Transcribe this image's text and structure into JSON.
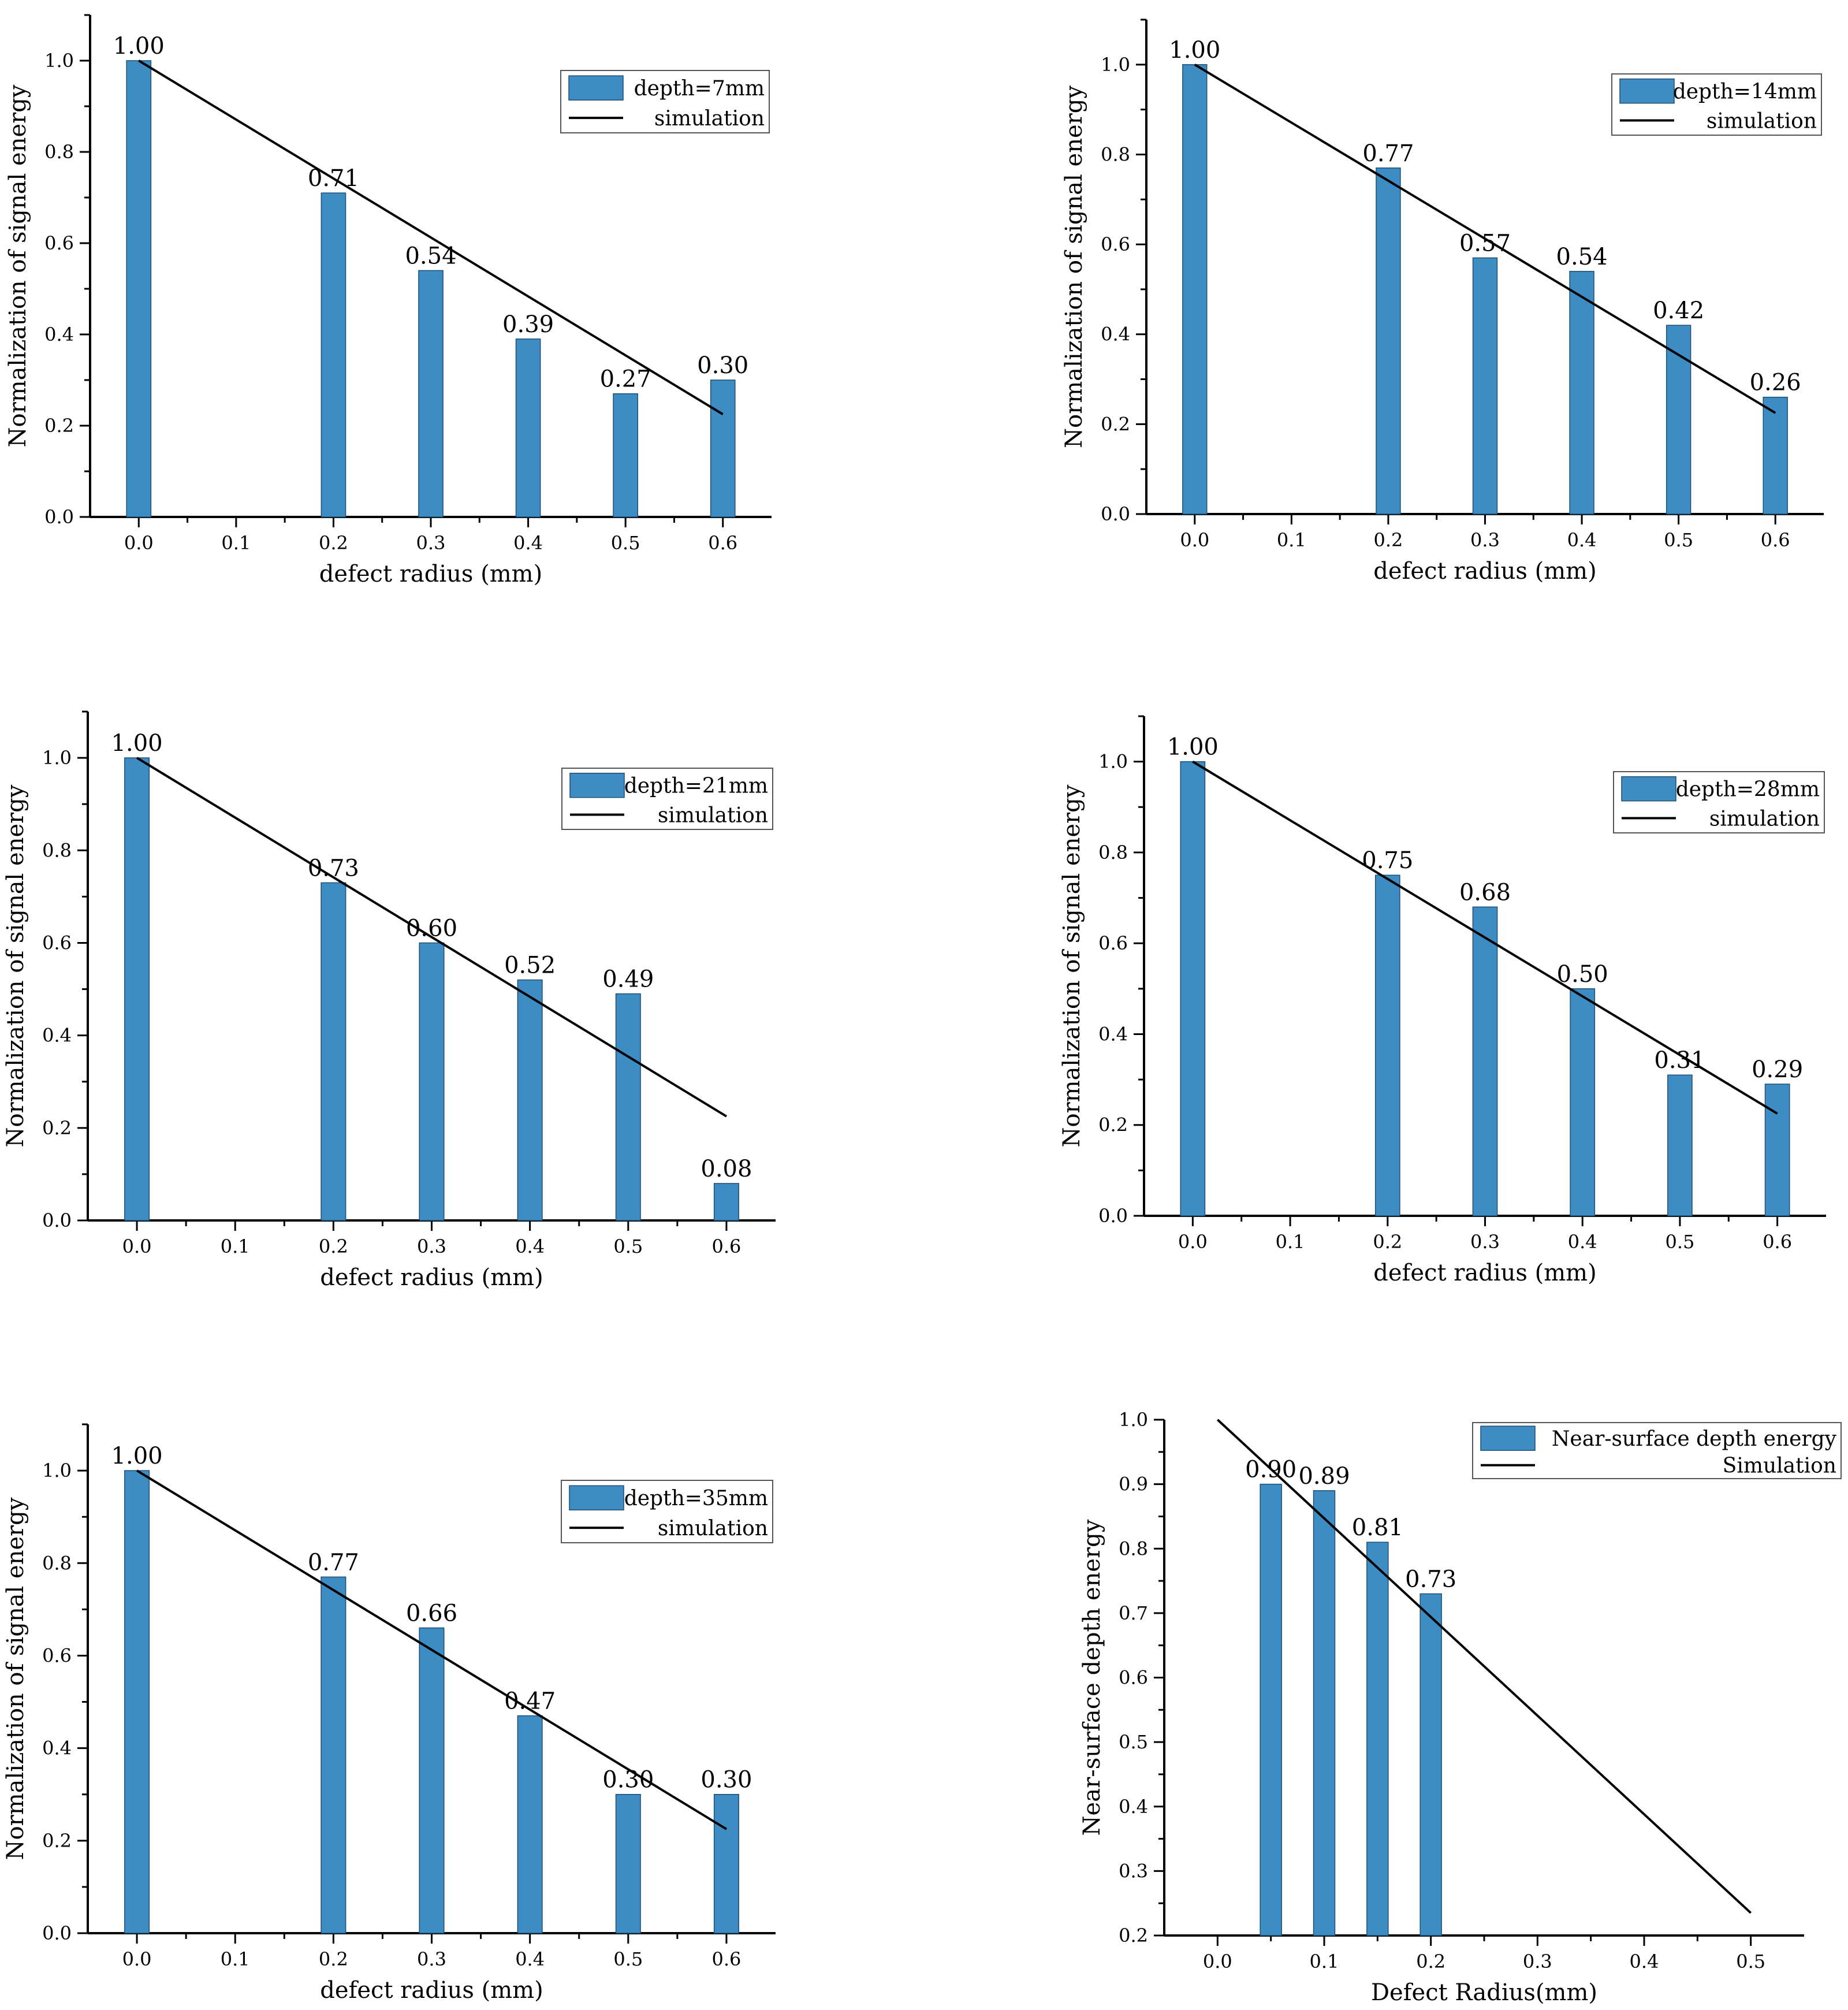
{
  "chart_data": [
    {
      "type": "bar",
      "x": [
        0.0,
        0.2,
        0.3,
        0.4,
        0.5,
        0.6
      ],
      "values": [
        1.0,
        0.71,
        0.54,
        0.39,
        0.27,
        0.3
      ],
      "value_labels": [
        "1.00",
        "0.71",
        "0.54",
        "0.39",
        "0.27",
        "0.30"
      ],
      "xticks": [
        "0.0",
        "0.1",
        "0.2",
        "0.3",
        "0.4",
        "0.5",
        "0.6"
      ],
      "yticks": [
        "0.0",
        "0.2",
        "0.4",
        "0.6",
        "0.8",
        "1.0"
      ],
      "xlim": [
        -0.05,
        0.65
      ],
      "ylim": [
        0,
        1.1
      ],
      "xlabel": "defect radius (mm)",
      "ylabel": "Normalization of signal energy",
      "bar_width": 0.025,
      "simulation": {
        "x": [
          0.0,
          0.6
        ],
        "y": [
          1.0,
          0.225
        ]
      },
      "legend": {
        "bar": "depth=7mm",
        "line": "simulation",
        "position": "top-right"
      },
      "colors": {
        "bar": "#3d8cc4",
        "line": "#000000"
      }
    },
    {
      "type": "bar",
      "x": [
        0.0,
        0.2,
        0.3,
        0.4,
        0.5,
        0.6
      ],
      "values": [
        1.0,
        0.77,
        0.57,
        0.54,
        0.42,
        0.26
      ],
      "value_labels": [
        "1.00",
        "0.77",
        "0.57",
        "0.54",
        "0.42",
        "0.26"
      ],
      "xticks": [
        "0.0",
        "0.1",
        "0.2",
        "0.3",
        "0.4",
        "0.5",
        "0.6"
      ],
      "yticks": [
        "0.0",
        "0.2",
        "0.4",
        "0.6",
        "0.8",
        "1.0"
      ],
      "xlim": [
        -0.05,
        0.65
      ],
      "ylim": [
        0,
        1.1
      ],
      "xlabel": "defect radius (mm)",
      "ylabel": "Normalization of signal energy",
      "bar_width": 0.025,
      "simulation": {
        "x": [
          0.0,
          0.6
        ],
        "y": [
          1.0,
          0.225
        ]
      },
      "legend": {
        "bar": "depth=14mm",
        "line": "simulation",
        "position": "top-right"
      },
      "colors": {
        "bar": "#3d8cc4",
        "line": "#000000"
      }
    },
    {
      "type": "bar",
      "x": [
        0.0,
        0.2,
        0.3,
        0.4,
        0.5,
        0.6
      ],
      "values": [
        1.0,
        0.73,
        0.6,
        0.52,
        0.49,
        0.08
      ],
      "value_labels": [
        "1.00",
        "0.73",
        "0.60",
        "0.52",
        "0.49",
        "0.08"
      ],
      "xticks": [
        "0.0",
        "0.1",
        "0.2",
        "0.3",
        "0.4",
        "0.5",
        "0.6"
      ],
      "yticks": [
        "0.0",
        "0.2",
        "0.4",
        "0.6",
        "0.8",
        "1.0"
      ],
      "xlim": [
        -0.05,
        0.65
      ],
      "ylim": [
        0,
        1.1
      ],
      "xlabel": "defect radius (mm)",
      "ylabel": "Normalization of signal energy",
      "bar_width": 0.025,
      "simulation": {
        "x": [
          0.0,
          0.6
        ],
        "y": [
          1.0,
          0.225
        ]
      },
      "legend": {
        "bar": "depth=21mm",
        "line": "simulation",
        "position": "top-right"
      },
      "colors": {
        "bar": "#3d8cc4",
        "line": "#000000"
      }
    },
    {
      "type": "bar",
      "x": [
        0.0,
        0.2,
        0.3,
        0.4,
        0.5,
        0.6
      ],
      "values": [
        1.0,
        0.75,
        0.68,
        0.5,
        0.31,
        0.29
      ],
      "value_labels": [
        "1.00",
        "0.75",
        "0.68",
        "0.50",
        "0.31",
        "0.29"
      ],
      "xticks": [
        "0.0",
        "0.1",
        "0.2",
        "0.3",
        "0.4",
        "0.5",
        "0.6"
      ],
      "yticks": [
        "0.0",
        "0.2",
        "0.4",
        "0.6",
        "0.8",
        "1.0"
      ],
      "xlim": [
        -0.05,
        0.65
      ],
      "ylim": [
        0,
        1.1
      ],
      "xlabel": "defect radius (mm)",
      "ylabel": "Normalization of signal energy",
      "bar_width": 0.025,
      "simulation": {
        "x": [
          0.0,
          0.6
        ],
        "y": [
          1.0,
          0.225
        ]
      },
      "legend": {
        "bar": "depth=28mm",
        "line": "simulation",
        "position": "top-right"
      },
      "colors": {
        "bar": "#3d8cc4",
        "line": "#000000"
      }
    },
    {
      "type": "bar",
      "x": [
        0.0,
        0.2,
        0.3,
        0.4,
        0.5,
        0.6
      ],
      "values": [
        1.0,
        0.77,
        0.66,
        0.47,
        0.3,
        0.3
      ],
      "value_labels": [
        "1.00",
        "0.77",
        "0.66",
        "0.47",
        "0.30",
        "0.30"
      ],
      "xticks": [
        "0.0",
        "0.1",
        "0.2",
        "0.3",
        "0.4",
        "0.5",
        "0.6"
      ],
      "yticks": [
        "0.0",
        "0.2",
        "0.4",
        "0.6",
        "0.8",
        "1.0"
      ],
      "xlim": [
        -0.05,
        0.65
      ],
      "ylim": [
        0,
        1.1
      ],
      "xlabel": "defect radius (mm)",
      "ylabel": "Normalization of signal energy",
      "bar_width": 0.025,
      "simulation": {
        "x": [
          0.0,
          0.6
        ],
        "y": [
          1.0,
          0.225
        ]
      },
      "legend": {
        "bar": "depth=35mm",
        "line": "simulation",
        "position": "top-right"
      },
      "colors": {
        "bar": "#3d8cc4",
        "line": "#000000"
      }
    },
    {
      "type": "bar",
      "x": [
        0.05,
        0.1,
        0.15,
        0.2
      ],
      "values": [
        0.9,
        0.89,
        0.81,
        0.73
      ],
      "value_labels": [
        "0.90",
        "0.89",
        "0.81",
        "0.73"
      ],
      "xticks": [
        "0.0",
        "0.1",
        "0.2",
        "0.3",
        "0.4",
        "0.5"
      ],
      "yticks": [
        "0.2",
        "0.3",
        "0.4",
        "0.5",
        "0.6",
        "0.7",
        "0.8",
        "0.9",
        "1.0"
      ],
      "xlim": [
        -0.05,
        0.55
      ],
      "ylim": [
        0.2,
        1.0
      ],
      "xlabel": "Defect Radius(mm)",
      "ylabel": "Near-surface depth energy",
      "bar_width": 0.02,
      "simulation": {
        "x": [
          0.0,
          0.5
        ],
        "y": [
          1.0,
          0.235
        ]
      },
      "legend": {
        "bar": "Near-surface depth energy",
        "line": "Simulation",
        "position": "top-right"
      },
      "colors": {
        "bar": "#3d8cc4",
        "line": "#000000"
      }
    }
  ]
}
